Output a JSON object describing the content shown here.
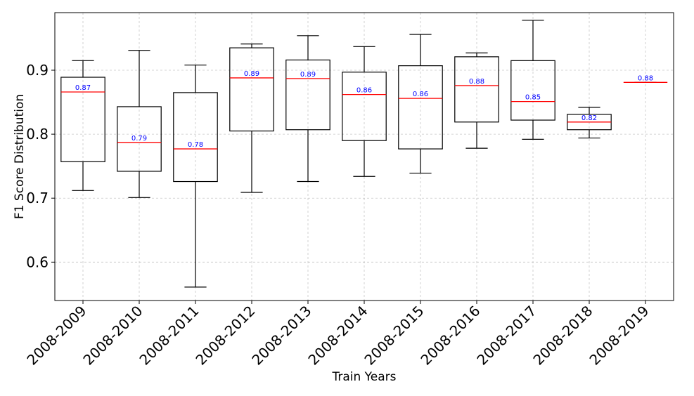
{
  "chart_data": {
    "type": "box",
    "title": "",
    "xlabel": "Train Years",
    "ylabel": "F1 Score Distribution",
    "ylim": [
      0.54,
      0.99
    ],
    "yticks": [
      0.6,
      0.7,
      0.8,
      0.9
    ],
    "ytick_labels": [
      "0.6",
      "0.7",
      "0.8",
      "0.9"
    ],
    "grid": true,
    "colors": {
      "median": "#ff0000",
      "median_label": "#0000ff",
      "box": "#000000"
    },
    "categories": [
      "2008-2009",
      "2008-2010",
      "2008-2011",
      "2008-2012",
      "2008-2013",
      "2008-2014",
      "2008-2015",
      "2008-2016",
      "2008-2017",
      "2008-2018",
      "2008-2019"
    ],
    "boxes": [
      {
        "min": 0.712,
        "q1": 0.757,
        "median": 0.866,
        "q3": 0.889,
        "max": 0.915,
        "median_label": "0.87"
      },
      {
        "min": 0.701,
        "q1": 0.742,
        "median": 0.787,
        "q3": 0.843,
        "max": 0.931,
        "median_label": "0.79"
      },
      {
        "min": 0.561,
        "q1": 0.726,
        "median": 0.777,
        "q3": 0.865,
        "max": 0.908,
        "median_label": "0.78"
      },
      {
        "min": 0.709,
        "q1": 0.805,
        "median": 0.888,
        "q3": 0.935,
        "max": 0.941,
        "median_label": "0.89"
      },
      {
        "min": 0.726,
        "q1": 0.807,
        "median": 0.887,
        "q3": 0.916,
        "max": 0.954,
        "median_label": "0.89"
      },
      {
        "min": 0.734,
        "q1": 0.79,
        "median": 0.862,
        "q3": 0.897,
        "max": 0.937,
        "median_label": "0.86"
      },
      {
        "min": 0.739,
        "q1": 0.777,
        "median": 0.856,
        "q3": 0.907,
        "max": 0.956,
        "median_label": "0.86"
      },
      {
        "min": 0.778,
        "q1": 0.819,
        "median": 0.876,
        "q3": 0.921,
        "max": 0.927,
        "median_label": "0.88"
      },
      {
        "min": 0.792,
        "q1": 0.822,
        "median": 0.851,
        "q3": 0.915,
        "max": 0.978,
        "median_label": "0.85"
      },
      {
        "min": 0.794,
        "q1": 0.807,
        "median": 0.819,
        "q3": 0.831,
        "max": 0.842,
        "median_label": "0.82"
      },
      {
        "min": 0.881,
        "q1": 0.881,
        "median": 0.881,
        "q3": 0.881,
        "max": 0.881,
        "median_label": "0.88"
      }
    ]
  }
}
